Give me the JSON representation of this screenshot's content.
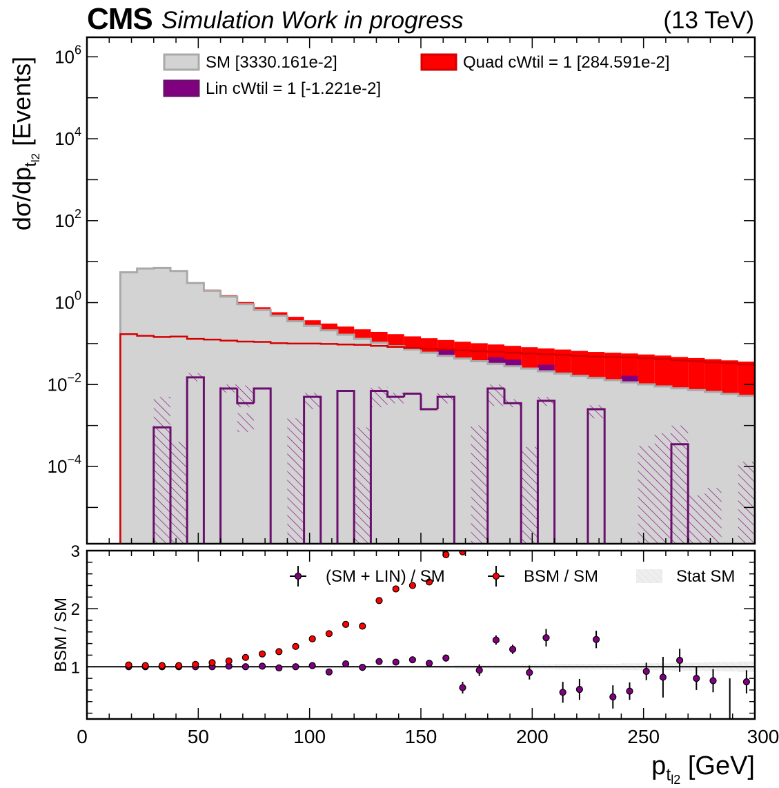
{
  "header": {
    "experiment": "CMS",
    "extra_text": "Simulation Work in progress",
    "lumi_text": "(13 TeV)"
  },
  "colors": {
    "sm_fill": "#d3d3d3",
    "sm_edge": "#a9a9a9",
    "lin": "#800080",
    "lin_edge": "#6a0f6e",
    "quad": "#ff0000",
    "quad_line": "#d40000",
    "stat_band": "#eeeeee"
  },
  "chart_data": [
    {
      "type": "area",
      "panel": "main",
      "ylabel": "dσ/dp",
      "ylabel_sub": "t",
      "ylabel_subsub": "l2",
      "ylabel_tail": " [Events]",
      "ylog": true,
      "ylim": [
        1.3e-06,
        3000000.0
      ],
      "xlim": [
        0,
        300
      ],
      "x_bin_edges": [
        15,
        22.5,
        30,
        37.5,
        45,
        52.5,
        60,
        67.5,
        75,
        82.5,
        90,
        97.5,
        105,
        112.5,
        120,
        127.5,
        135,
        142.5,
        150,
        157.5,
        165,
        172.5,
        180,
        187.5,
        195,
        202.5,
        210,
        217.5,
        225,
        232.5,
        240,
        247.5,
        255,
        262.5,
        270,
        277.5,
        285,
        292.5,
        300
      ],
      "ytick_labels": [
        {
          "base": "10",
          "exp": "6",
          "value": 1000000.0
        },
        {
          "base": "10",
          "exp": "4",
          "value": 10000.0
        },
        {
          "base": "10",
          "exp": "2",
          "value": 100.0
        },
        {
          "base": "10",
          "exp": "0",
          "value": 1
        },
        {
          "base": "10",
          "exp": "−2",
          "value": 0.01
        },
        {
          "base": "10",
          "exp": "−4",
          "value": 0.0001
        }
      ],
      "legend": [
        {
          "label": "SM [3330.161e-2]",
          "key": "sm"
        },
        {
          "label": "Quad cWtil = 1 [284.591e-2]",
          "key": "quad"
        },
        {
          "label": "Lin cWtil = 1 [-1.221e-2]",
          "key": "lin"
        }
      ],
      "series": {
        "sm": [
          5.5,
          6.8,
          7.0,
          5.9,
          3.0,
          1.95,
          1.4,
          0.92,
          0.66,
          0.48,
          0.35,
          0.27,
          0.21,
          0.165,
          0.13,
          0.105,
          0.087,
          0.072,
          0.06,
          0.05,
          0.043,
          0.037,
          0.032,
          0.028,
          0.0245,
          0.021,
          0.0185,
          0.0163,
          0.0145,
          0.0128,
          0.0113,
          0.0101,
          0.009,
          0.0081,
          0.0073,
          0.0066,
          0.0059,
          0.0053
        ],
        "quad": [
          0.17,
          0.155,
          0.145,
          0.148,
          0.13,
          0.125,
          0.118,
          0.112,
          0.11,
          0.102,
          0.1,
          0.1,
          0.098,
          0.095,
          0.093,
          0.088,
          0.083,
          0.078,
          0.075,
          0.072,
          0.068,
          0.065,
          0.063,
          0.06,
          0.057,
          0.055,
          0.053,
          0.05,
          0.048,
          0.047,
          0.046,
          0.044,
          0.042,
          0.039,
          0.037,
          0.035,
          0.033,
          0.031
        ],
        "lin_pos": [
          null,
          null,
          0.0009,
          null,
          0.015,
          null,
          0.008,
          0.0035,
          0.008,
          null,
          null,
          0.005,
          null,
          0.007,
          null,
          0.007,
          0.005,
          0.006,
          0.0025,
          0.005,
          null,
          null,
          0.008,
          0.0035,
          null,
          0.004,
          null,
          null,
          0.0025,
          null,
          null,
          null,
          null,
          0.00035,
          null,
          null,
          null,
          null
        ],
        "lin_neg_hatch": [
          null,
          null,
          0.005,
          0.0004,
          null,
          null,
          null,
          0.002,
          null,
          null,
          0.0015,
          null,
          null,
          null,
          0.0009,
          null,
          null,
          0.002,
          0.001,
          null,
          null,
          0.001,
          null,
          null,
          0.0003,
          null,
          null,
          null,
          null,
          null,
          null,
          0.00032,
          0.00065,
          0.001,
          2e-05,
          3e-05,
          null,
          0.00013
        ],
        "lin_hatch_lo": [
          null,
          null,
          1e-06,
          1e-06,
          null,
          null,
          null,
          0.0007,
          null,
          null,
          1e-06,
          null,
          null,
          null,
          1e-06,
          null,
          null,
          0.0025,
          0.0018,
          null,
          null,
          1e-06,
          null,
          null,
          1e-06,
          null,
          null,
          null,
          null,
          null,
          null,
          1e-06,
          1e-06,
          1e-06,
          1e-06,
          1e-06,
          null,
          1e-06
        ],
        "lin_hatch_top_pos": [
          null,
          null,
          null,
          null,
          0.019,
          null,
          0.0095,
          0.0095,
          null,
          null,
          null,
          0.0025,
          null,
          null,
          null,
          0.0028,
          0.0035,
          null,
          null,
          0.0035,
          null,
          null,
          0.003,
          0.0035,
          null,
          0.003,
          null,
          null,
          0.0015,
          null,
          null,
          null,
          null,
          null,
          null,
          null,
          null,
          null
        ]
      }
    },
    {
      "type": "scatter",
      "panel": "ratio",
      "xlabel": "p",
      "xlabel_sub": "t",
      "xlabel_subsub": "l2",
      "xlabel_tail": " [GeV]",
      "ylabel": "BSM / SM",
      "xlim": [
        0,
        300
      ],
      "ylim": [
        0.1,
        3
      ],
      "x_ticks": [
        0,
        50,
        100,
        150,
        200,
        250,
        300
      ],
      "y_ticks": [
        1,
        2,
        3
      ],
      "legend": [
        {
          "label": "(SM + LIN) / SM",
          "key": "lin"
        },
        {
          "label": "BSM / SM",
          "key": "bsm"
        },
        {
          "label": "Stat SM",
          "key": "stat"
        }
      ],
      "x": [
        18.75,
        26.25,
        33.75,
        41.25,
        48.75,
        56.25,
        63.75,
        71.25,
        78.75,
        86.25,
        93.75,
        101.25,
        108.75,
        116.25,
        123.75,
        131.25,
        138.75,
        146.25,
        153.75,
        161.25,
        168.75,
        176.25,
        183.75,
        191.25,
        198.75,
        206.25,
        213.75,
        221.25,
        228.75,
        236.25,
        243.75,
        251.25,
        258.75,
        266.25,
        273.75,
        281.25,
        288.75,
        296.25
      ],
      "series": [
        {
          "key": "lin",
          "values": [
            1.0,
            1.0,
            1.0,
            1.0,
            1.0,
            1.0,
            1.01,
            1.0,
            1.01,
            0.98,
            1.0,
            1.02,
            0.91,
            1.05,
            0.99,
            1.09,
            1.08,
            1.12,
            1.06,
            1.15,
            0.64,
            0.94,
            1.46,
            1.3,
            0.9,
            1.5,
            0.56,
            0.61,
            1.47,
            0.48,
            0.58,
            0.92,
            0.82,
            1.11,
            0.8,
            0.76,
            null,
            0.74
          ],
          "err": [
            0.01,
            0.01,
            0.01,
            0.01,
            0.01,
            0.01,
            0.01,
            0.01,
            0.01,
            0.02,
            0.02,
            0.02,
            0.03,
            0.03,
            0.03,
            0.04,
            0.04,
            0.05,
            0.05,
            0.06,
            0.1,
            0.1,
            0.08,
            0.08,
            0.12,
            0.15,
            0.18,
            0.18,
            0.15,
            0.2,
            0.15,
            0.15,
            0.35,
            0.2,
            0.2,
            0.2,
            null,
            0.2
          ]
        },
        {
          "key": "bsm",
          "values": [
            1.03,
            1.02,
            1.02,
            1.02,
            1.04,
            1.07,
            1.1,
            1.16,
            1.22,
            1.26,
            1.35,
            1.48,
            1.57,
            1.73,
            1.7,
            2.14,
            2.34,
            2.4,
            2.46,
            2.93,
            2.98,
            null,
            null,
            null,
            null,
            null,
            null,
            null,
            null,
            null,
            null,
            null,
            null,
            null,
            null,
            null,
            null,
            null
          ]
        }
      ],
      "stat_band_halfwidth": [
        0.01,
        0.01,
        0.01,
        0.01,
        0.01,
        0.01,
        0.01,
        0.01,
        0.01,
        0.01,
        0.01,
        0.01,
        0.01,
        0.01,
        0.01,
        0.01,
        0.02,
        0.02,
        0.02,
        0.02,
        0.03,
        0.03,
        0.03,
        0.03,
        0.04,
        0.04,
        0.05,
        0.05,
        0.05,
        0.05,
        0.06,
        0.06,
        0.06,
        0.07,
        0.07,
        0.08,
        0.08,
        0.09
      ],
      "lone_error_bar": {
        "x": 288.75,
        "lo": 0.0,
        "hi": 0.8
      }
    }
  ]
}
